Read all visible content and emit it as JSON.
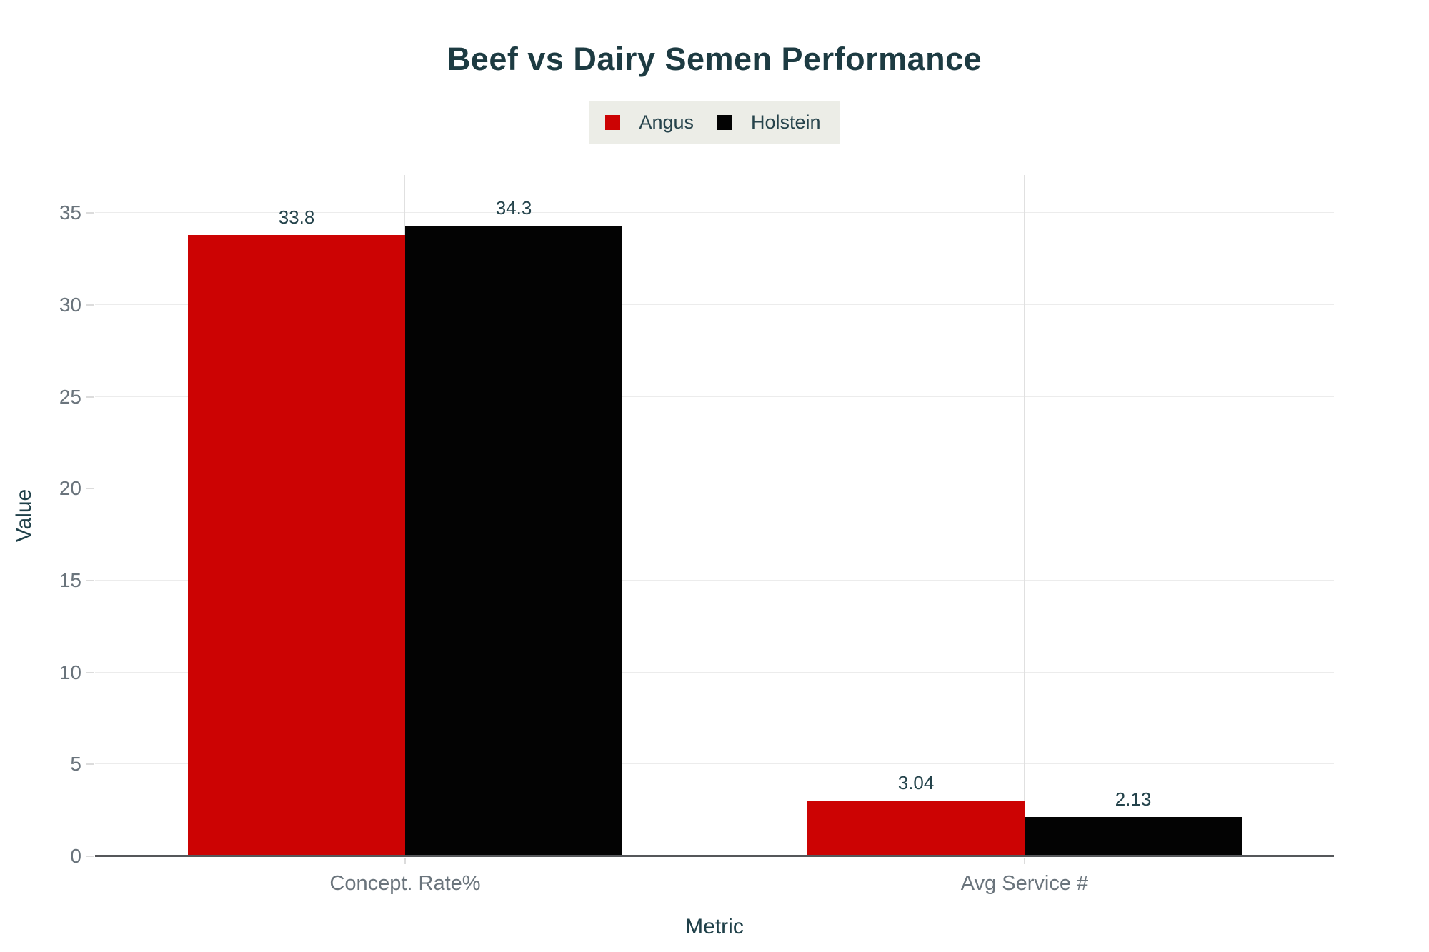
{
  "chart_data": {
    "type": "bar",
    "title": "Beef vs Dairy Semen Performance",
    "xlabel": "Metric",
    "ylabel": "Value",
    "categories": [
      "Concept. Rate%",
      "Avg Service #"
    ],
    "series": [
      {
        "name": "Angus",
        "color": "#cc0303",
        "values": [
          33.8,
          3.04
        ]
      },
      {
        "name": "Holstein",
        "color": "#030303",
        "values": [
          34.3,
          2.13
        ]
      }
    ],
    "value_labels": [
      [
        "33.8",
        "34.3"
      ],
      [
        "3.04",
        "2.13"
      ]
    ],
    "yticks": [
      0,
      5,
      10,
      15,
      20,
      25,
      30,
      35
    ],
    "ylim": [
      0,
      37
    ],
    "grid": true,
    "legend_position": "top-center"
  },
  "colors": {
    "title_text": "#1d3b42",
    "axis_title_text": "#1f4049",
    "tick_text": "#6a747c",
    "value_label_text": "#24434b",
    "legend_bg": "#ecede7",
    "legend_text": "#27444c",
    "gridline_h": "#ececec",
    "gridline_v": "#e0e0e0",
    "tick_mark": "#dcdcdc",
    "axis_line": "#55575a",
    "background": "#ffffff"
  }
}
